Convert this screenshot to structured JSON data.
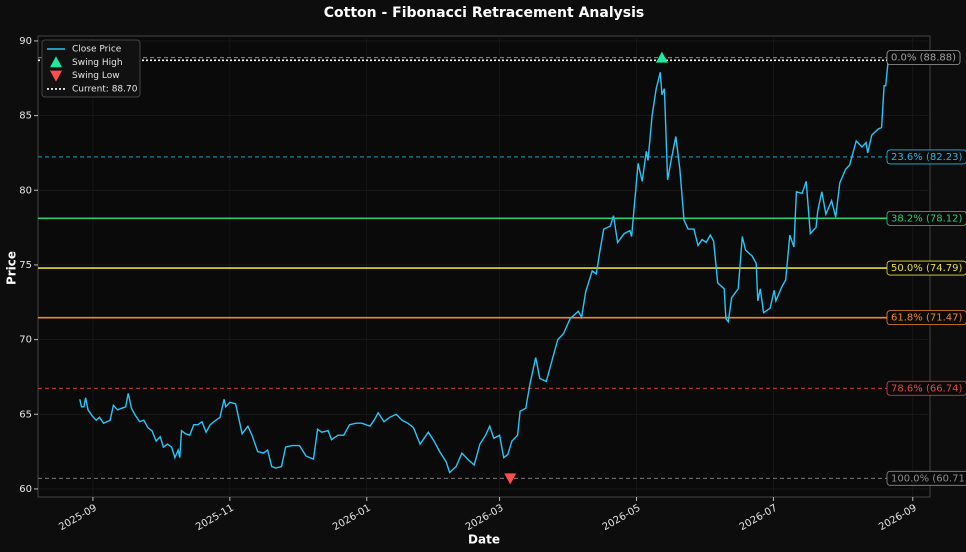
{
  "chart_data": {
    "type": "line",
    "title": "Cotton - Fibonacci Retracement Analysis",
    "x_label": "Date",
    "y_label": "Price",
    "xlim": [
      2025.599,
      2026.687
    ],
    "ylim": [
      59.46,
      90.33
    ],
    "xticks": [
      {
        "value": 2025.666,
        "label": "2025-09"
      },
      {
        "value": 2025.833,
        "label": "2025-11"
      },
      {
        "value": 2026.0,
        "label": "2026-01"
      },
      {
        "value": 2026.162,
        "label": "2026-03"
      },
      {
        "value": 2026.329,
        "label": "2026-05"
      },
      {
        "value": 2026.496,
        "label": "2026-07"
      },
      {
        "value": 2026.666,
        "label": "2026-09"
      }
    ],
    "yticks": [
      60,
      65,
      70,
      75,
      80,
      85,
      90
    ],
    "grid": true,
    "legend": "upper left",
    "x": [
      2025.65,
      2025.652,
      2025.655,
      2025.657,
      2025.66,
      2025.665,
      2025.67,
      2025.674,
      2025.679,
      2025.687,
      2025.691,
      2025.696,
      2025.701,
      2025.706,
      2025.709,
      2025.713,
      2025.718,
      2025.723,
      2025.728,
      2025.733,
      2025.738,
      2025.743,
      2025.748,
      2025.752,
      2025.757,
      2025.762,
      2025.766,
      2025.77,
      2025.772,
      2025.774,
      2025.779,
      2025.784,
      2025.789,
      2025.794,
      2025.799,
      2025.804,
      2025.809,
      2025.816,
      2025.821,
      2025.826,
      2025.828,
      2025.833,
      2025.84,
      2025.848,
      2025.855,
      2025.86,
      2025.867,
      2025.874,
      2025.879,
      2025.884,
      2025.889,
      2025.896,
      2025.901,
      2025.909,
      2025.918,
      2025.926,
      2025.935,
      2025.94,
      2025.945,
      2025.953,
      2025.957,
      2025.965,
      2025.972,
      2025.979,
      2025.987,
      2025.994,
      2026.004,
      2026.009,
      2026.014,
      2026.021,
      2026.028,
      2026.036,
      2026.043,
      2026.05,
      2026.057,
      2026.065,
      2026.075,
      2026.082,
      2026.089,
      2026.097,
      2026.101,
      2026.109,
      2026.116,
      2026.123,
      2026.131,
      2026.138,
      2026.145,
      2026.15,
      2026.155,
      2026.162,
      2026.167,
      2026.172,
      2026.177,
      2026.184,
      2026.187,
      2026.194,
      2026.199,
      2026.206,
      2026.211,
      2026.219,
      2026.226,
      2026.233,
      2026.24,
      2026.248,
      2026.258,
      2026.262,
      2026.267,
      2026.275,
      2026.28,
      2026.284,
      2026.289,
      2026.297,
      2026.301,
      2026.306,
      2026.314,
      2026.321,
      2026.323,
      2026.328,
      2026.331,
      2026.336,
      2026.341,
      2026.343,
      2026.348,
      2026.353,
      2026.358,
      2026.36,
      2026.363,
      2026.367,
      2026.372,
      2026.377,
      2026.382,
      2026.387,
      2026.392,
      2026.399,
      2026.404,
      2026.409,
      2026.414,
      2026.419,
      2026.423,
      2026.428,
      2026.436,
      2026.438,
      2026.441,
      2026.445,
      2026.453,
      2026.458,
      2026.462,
      2026.47,
      2026.475,
      2026.477,
      2026.48,
      2026.484,
      2026.492,
      2026.497,
      2026.499,
      2026.506,
      2026.511,
      2026.516,
      2026.521,
      2026.524,
      2026.531,
      2026.536,
      2026.541,
      2026.548,
      2026.55,
      2026.555,
      2026.56,
      2026.567,
      2026.572,
      2026.577,
      2026.584,
      2026.589,
      2026.597,
      2026.604,
      2026.609,
      2026.611,
      2026.616,
      2026.624,
      2026.628,
      2026.631,
      2026.633,
      2026.636
    ],
    "series": [
      {
        "name": "Close Price",
        "color": "#29c5f6",
        "values": [
          66.0,
          65.5,
          65.5,
          66.1,
          65.3,
          64.9,
          64.6,
          64.8,
          64.4,
          64.6,
          65.6,
          65.3,
          65.4,
          65.5,
          66.4,
          65.4,
          64.9,
          64.5,
          64.6,
          64.1,
          63.9,
          63.2,
          63.5,
          62.8,
          63.0,
          62.8,
          62.1,
          62.6,
          62.1,
          63.9,
          63.7,
          63.6,
          64.3,
          64.3,
          64.5,
          63.8,
          64.3,
          64.6,
          64.8,
          66.0,
          65.5,
          65.8,
          65.7,
          63.7,
          64.2,
          63.6,
          62.5,
          62.4,
          62.6,
          61.5,
          61.4,
          61.5,
          62.8,
          62.9,
          62.9,
          62.2,
          62.0,
          64.0,
          63.8,
          63.9,
          63.3,
          63.6,
          63.6,
          64.3,
          64.4,
          64.4,
          64.2,
          64.6,
          65.1,
          64.5,
          64.8,
          65.0,
          64.6,
          64.4,
          64.1,
          63.0,
          63.8,
          63.2,
          62.5,
          61.8,
          61.1,
          61.5,
          62.4,
          62.0,
          61.6,
          63.0,
          63.6,
          64.2,
          63.4,
          63.6,
          62.1,
          62.3,
          63.2,
          63.6,
          65.2,
          65.4,
          67.0,
          68.8,
          67.4,
          67.2,
          68.6,
          70.0,
          70.4,
          71.4,
          71.9,
          71.5,
          73.2,
          74.6,
          74.4,
          75.8,
          77.4,
          77.6,
          78.3,
          76.5,
          77.1,
          77.3,
          76.9,
          80.0,
          81.8,
          80.6,
          82.6,
          82.0,
          85.0,
          86.8,
          87.9,
          86.4,
          86.8,
          80.7,
          82.2,
          83.6,
          81.4,
          78.0,
          77.4,
          77.4,
          76.3,
          76.7,
          76.5,
          77.0,
          76.6,
          73.8,
          73.4,
          71.4,
          71.2,
          72.8,
          73.4,
          76.9,
          76.0,
          75.6,
          75.1,
          72.6,
          73.4,
          71.8,
          72.1,
          73.3,
          72.6,
          73.5,
          74.0,
          77.0,
          76.2,
          79.9,
          79.8,
          80.6,
          77.1,
          77.5,
          78.6,
          79.9,
          78.4,
          79.3,
          78.2,
          80.5,
          81.4,
          81.7,
          83.3,
          82.9,
          83.2,
          82.5,
          83.7,
          84.1,
          84.2,
          87.0,
          87.0,
          88.7
        ]
      }
    ],
    "markers": [
      {
        "name": "Swing High",
        "color": "#1de9a0",
        "shape": "triangle-up",
        "x": 2026.36,
        "y": 88.88
      },
      {
        "name": "Swing Low",
        "color": "#ff4d4d",
        "shape": "triangle-down",
        "x": 2026.175,
        "y": 60.71
      }
    ],
    "current": {
      "name": "Current: 88.70",
      "value": 88.7,
      "color": "#ffffff"
    },
    "fib_levels": [
      {
        "label": "0.0% (88.88)",
        "value": 88.88,
        "color": "#a0a0a0",
        "style": "dashed"
      },
      {
        "label": "23.6% (82.23)",
        "value": 82.23,
        "color": "#29b6e0",
        "style": "dashed"
      },
      {
        "label": "38.2% (78.12)",
        "value": 78.12,
        "color": "#2ecc71",
        "style": "solid"
      },
      {
        "label": "50.0% (74.79)",
        "value": 74.79,
        "color": "#e8dc3a",
        "style": "solid"
      },
      {
        "label": "61.8% (71.47)",
        "value": 71.47,
        "color": "#f0882a",
        "style": "solid"
      },
      {
        "label": "78.6% (66.74)",
        "value": 66.74,
        "color": "#e04848",
        "style": "dashed"
      },
      {
        "label": "100.0% (60.71)",
        "value": 60.71,
        "color": "#8a8a8a",
        "style": "dashed"
      }
    ]
  }
}
